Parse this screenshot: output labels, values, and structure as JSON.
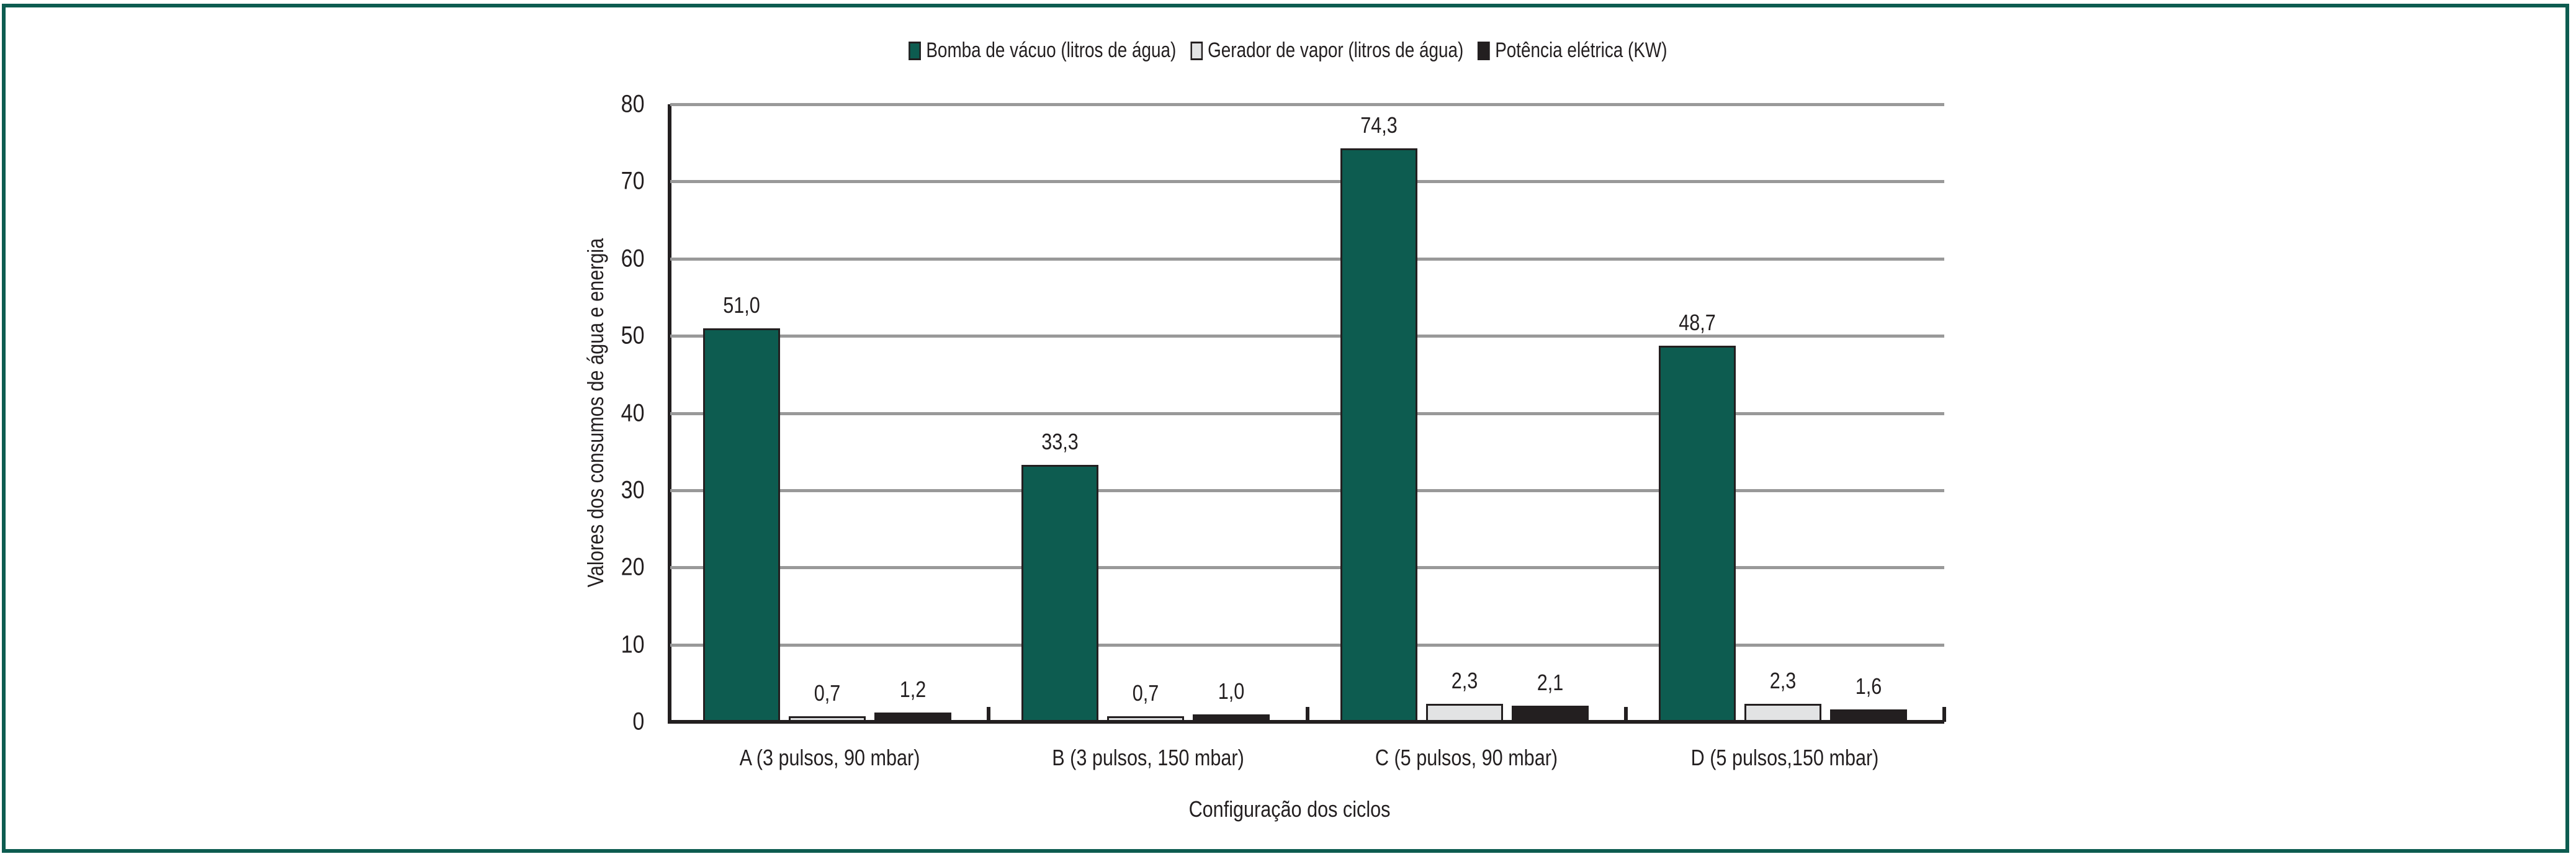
{
  "chart_data": {
    "type": "bar",
    "title": "",
    "xlabel": "Configuração dos ciclos",
    "ylabel": "Valores dos consumos de água e energia",
    "ylim": [
      0,
      80
    ],
    "yticks": [
      0,
      10,
      20,
      30,
      40,
      50,
      60,
      70,
      80
    ],
    "grid": true,
    "legend_position": "top",
    "categories": [
      "A (3 pulsos, 90 mbar)",
      "B (3 pulsos, 150 mbar)",
      "C (5 pulsos, 90 mbar)",
      "D (5 pulsos,150 mbar)"
    ],
    "series": [
      {
        "name": "Bomba de vácuo (litros de água)",
        "color": "#0d5c50",
        "values": [
          51.0,
          33.3,
          74.3,
          48.7
        ],
        "labels": [
          "51,0",
          "33,3",
          "74,3",
          "48,7"
        ]
      },
      {
        "name": "Gerador de vapor (litros de água)",
        "color": "#e2e3e4",
        "values": [
          0.7,
          0.7,
          2.3,
          2.3
        ],
        "labels": [
          "0,7",
          "0,7",
          "2,3",
          "2,3"
        ]
      },
      {
        "name": "Potência elétrica (KW)",
        "color": "#231f20",
        "values": [
          1.2,
          1.0,
          2.1,
          1.6
        ],
        "labels": [
          "1,2",
          "1,0",
          "2,1",
          "1,6"
        ]
      }
    ]
  },
  "colors": {
    "frame": "#0d5c50",
    "grid": "#999999",
    "axis": "#231f20"
  }
}
